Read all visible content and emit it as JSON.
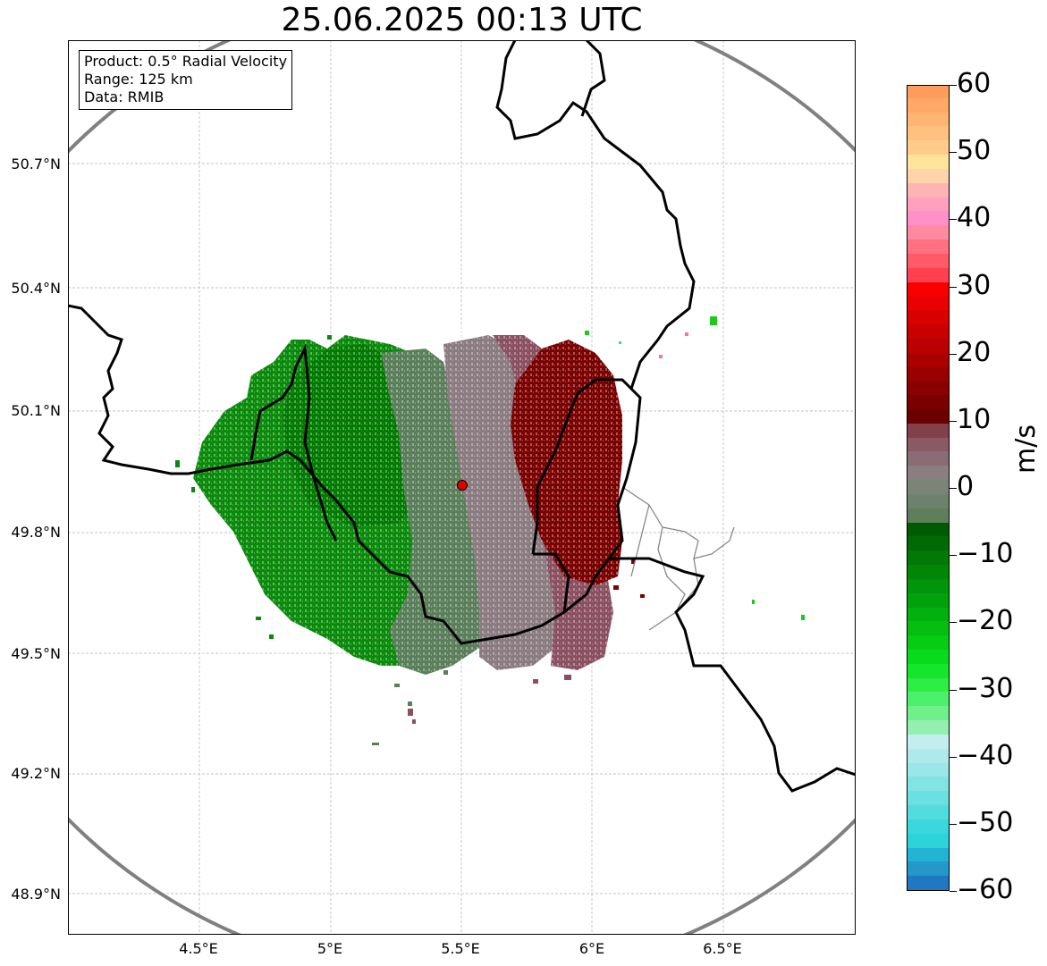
{
  "title": "25.06.2025 00:13 UTC",
  "info_box": {
    "product": "Product: 0.5° Radial Velocity",
    "range": "Range: 125 km",
    "data": "Data: RMIB"
  },
  "axes": {
    "y_ticks": [
      "48.9°N",
      "49.2°N",
      "49.5°N",
      "49.8°N",
      "50.1°N",
      "50.4°N",
      "50.7°N"
    ],
    "x_ticks": [
      "4.5°E",
      "5°E",
      "5.5°E",
      "6°E",
      "6.5°E"
    ],
    "lon_range": [
      4.0,
      7.0
    ],
    "lat_range": [
      48.8,
      51.0
    ],
    "grid": true
  },
  "radar": {
    "site_lon": 5.505,
    "site_lat": 49.914,
    "range_ring_color": "#808080",
    "site_marker_color": "#e00000"
  },
  "colorbar": {
    "unit": "m/s",
    "min": -60,
    "max": 60,
    "tick_labels": [
      "60",
      "50",
      "40",
      "30",
      "20",
      "10",
      "0",
      "−10",
      "−20",
      "−30",
      "−40",
      "−50",
      "−60"
    ],
    "colors_bottom_to_top": [
      "#1f78c1",
      "#2398c9",
      "#22b4d3",
      "#2cd4da",
      "#3ad8dc",
      "#52dcde",
      "#6be0e1",
      "#82e3e4",
      "#99e7e8",
      "#aeeaeb",
      "#c2eef0",
      "#93f0b0",
      "#6ff08a",
      "#4cf06a",
      "#2cee44",
      "#14e62a",
      "#08da1c",
      "#06cc14",
      "#04be10",
      "#02b00e",
      "#02a20c",
      "#02940a",
      "#028608",
      "#027806",
      "#016a04",
      "#005a00",
      "#5e7e5c",
      "#6c826c",
      "#7c8478",
      "#8a7e80",
      "#8a6c74",
      "#8a5a62",
      "#82404a",
      "#6a0000",
      "#7a0000",
      "#8a0000",
      "#9a0000",
      "#aa0000",
      "#ba0000",
      "#ca0000",
      "#da0000",
      "#ea0000",
      "#f80000",
      "#ff4050",
      "#ff5a68",
      "#ff7080",
      "#ff8aa0",
      "#ff90c8",
      "#ffa0c0",
      "#ffb4b4",
      "#ffd4a8",
      "#ffe49c",
      "#ffcc8c",
      "#ffc080",
      "#ffb474",
      "#ffa868",
      "#ff9c5c"
    ]
  },
  "velocity_colors": {
    "strong_inbound": "#007a00",
    "inbound": "#0a8a0a",
    "weak_inbound": "#5a7e5a",
    "near_zero": "#8a7b80",
    "weak_outbound": "#8a5060",
    "outbound": "#7a0000"
  },
  "border_color": "#000000",
  "province_color": "#808080"
}
